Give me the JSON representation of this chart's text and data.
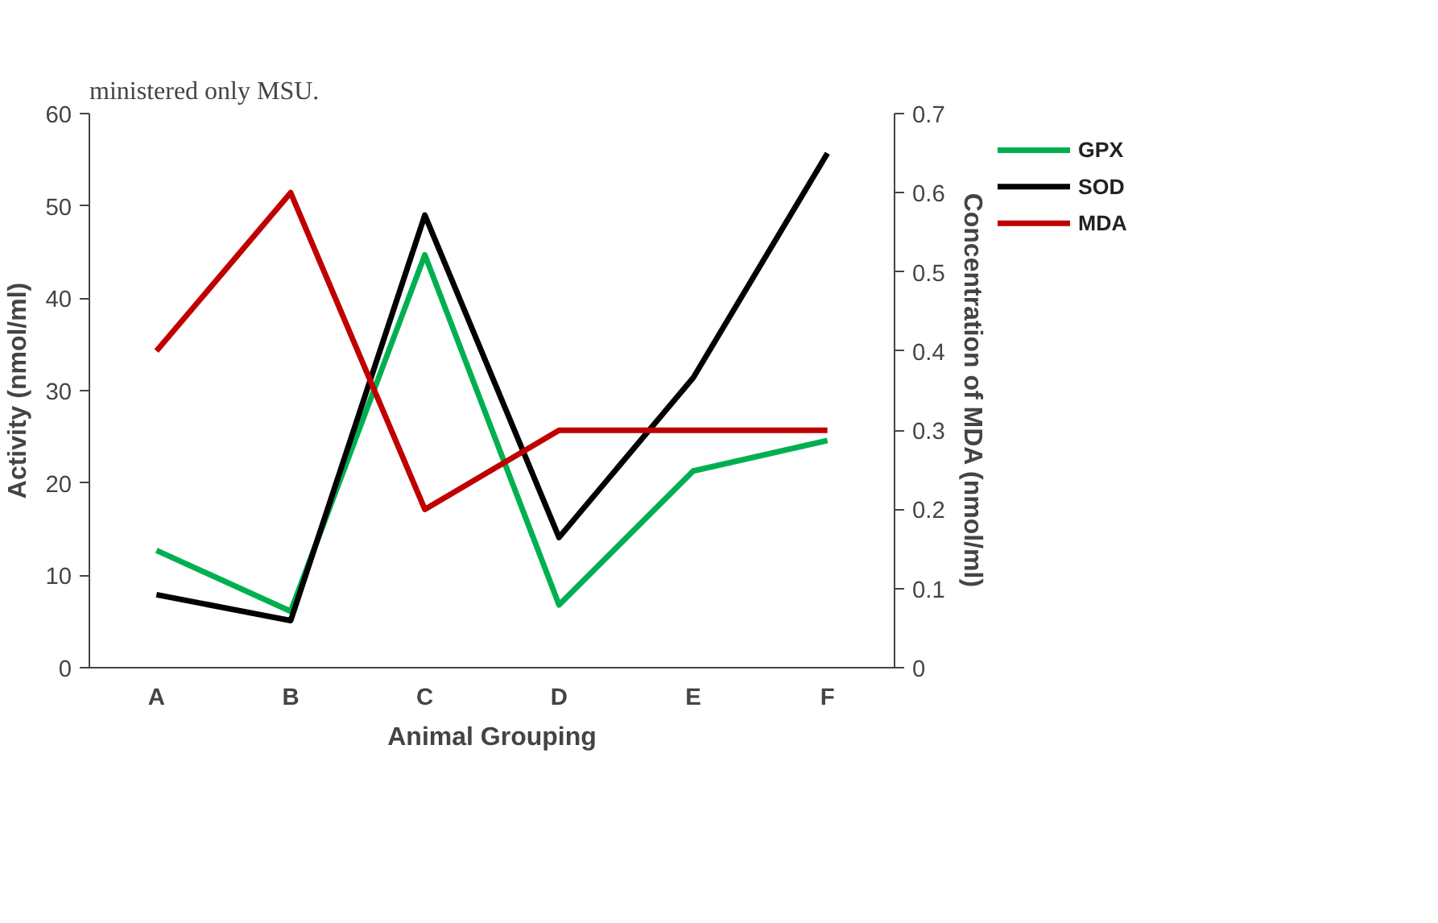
{
  "chart_data": {
    "type": "line",
    "xlabel": "Animal Grouping",
    "ylabel": "Activity (nmol/ml)",
    "y2label": "Concentration of MDA (nmol/ml)",
    "categories": [
      "A",
      "B",
      "C",
      "D",
      "E",
      "F"
    ],
    "series": [
      {
        "name": "GPX",
        "color": "#00b050",
        "values": [
          12.7,
          6.1,
          44.7,
          6.8,
          21.3,
          24.6
        ]
      },
      {
        "name": "SOD",
        "color": "#000000",
        "values": [
          7.9,
          5.1,
          49.0,
          14.1,
          31.4,
          55.7
        ]
      },
      {
        "name": "MDA",
        "color": "#c00000",
        "axis": "y2",
        "values": [
          0.4,
          0.6,
          0.2,
          0.3,
          0.3,
          0.3
        ]
      }
    ],
    "ylim": [
      0,
      60
    ],
    "yticks": [
      0,
      10,
      20,
      30,
      40,
      50,
      60
    ],
    "y2lim": [
      0,
      0.7
    ],
    "y2ticks": [
      {
        "value": 0,
        "label": "0"
      },
      0.1,
      0.2,
      0.3,
      0.4,
      0.5,
      0.6,
      0.7
    ],
    "annotations": [
      "ministered only MSU."
    ],
    "grid": false,
    "legend": "top right",
    "marker": "none",
    "line_style": "solid"
  }
}
